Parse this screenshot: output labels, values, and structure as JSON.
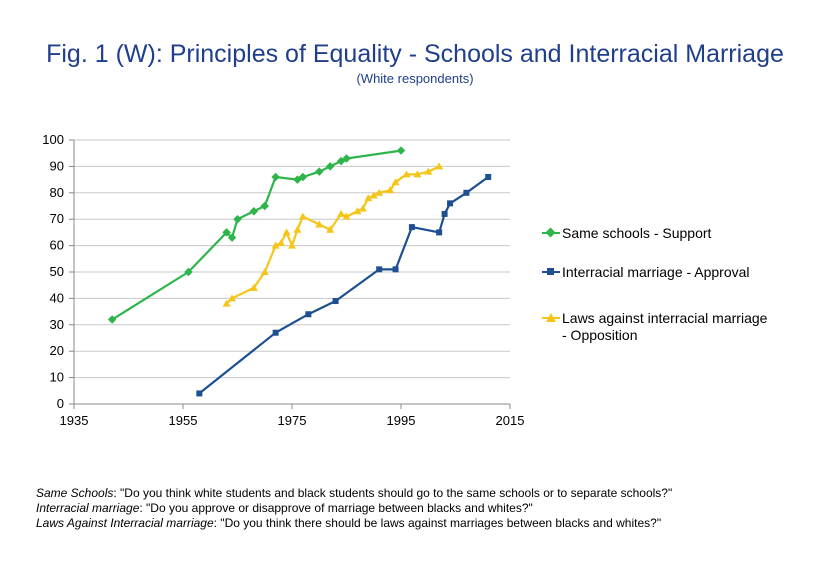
{
  "title": "Fig. 1 (W): Principles of Equality - Schools and Interracial Marriage",
  "subtitle": "(White respondents)",
  "chart_data": {
    "type": "line",
    "xlim": [
      1935,
      2015
    ],
    "ylim": [
      0,
      100
    ],
    "x_ticks": [
      "1935",
      "1955",
      "1975",
      "1995",
      "2015"
    ],
    "y_ticks": [
      "0",
      "10",
      "20",
      "30",
      "40",
      "50",
      "60",
      "70",
      "80",
      "90",
      "100"
    ],
    "grid": "horizontal",
    "legend_position": "right",
    "series": [
      {
        "name": "Same schools - Support",
        "color": "#2db54a",
        "marker": "diamond",
        "x": [
          1942,
          1956,
          1963,
          1964,
          1965,
          1968,
          1970,
          1972,
          1976,
          1977,
          1980,
          1982,
          1984,
          1985,
          1995
        ],
        "y": [
          32,
          50,
          65,
          63,
          70,
          73,
          75,
          86,
          85,
          86,
          88,
          90,
          92,
          93,
          96
        ]
      },
      {
        "name": "Interracial marriage - Approval",
        "color": "#1d4f91",
        "marker": "square",
        "x": [
          1958,
          1972,
          1978,
          1983,
          1991,
          1994,
          1997,
          2002,
          2003,
          2004,
          2007,
          2011
        ],
        "y": [
          4,
          27,
          34,
          39,
          51,
          51,
          67,
          65,
          72,
          76,
          80,
          86
        ]
      },
      {
        "name": "Laws against interracial marriage - Opposition",
        "color": "#f5c518",
        "marker": "triangle",
        "x": [
          1963,
          1964,
          1968,
          1970,
          1972,
          1973,
          1974,
          1975,
          1976,
          1977,
          1980,
          1982,
          1984,
          1985,
          1987,
          1988,
          1989,
          1990,
          1991,
          1993,
          1994,
          1996,
          1998,
          2000,
          2002
        ],
        "y": [
          38,
          40,
          44,
          50,
          60,
          61,
          65,
          60,
          66,
          71,
          68,
          66,
          72,
          71,
          73,
          74,
          78,
          79,
          80,
          81,
          84,
          87,
          87,
          88,
          90
        ]
      }
    ]
  },
  "legend": {
    "schools": "Same schools - Support",
    "marriage": "Interracial marriage - Approval",
    "laws_line1": "Laws against interracial marriage",
    "laws_line2": "- Opposition"
  },
  "notes": [
    {
      "label": "Same Schools",
      "text": ": \"Do you think white students and black students should go to the same schools or to separate schools?\""
    },
    {
      "label": "Interracial marriage",
      "text": ": \"Do you approve or disapprove of marriage between blacks and whites?\""
    },
    {
      "label": "Laws Against Interracial marriage",
      "text": ": \"Do you think there should be laws against marriages between blacks and whites?\""
    }
  ]
}
